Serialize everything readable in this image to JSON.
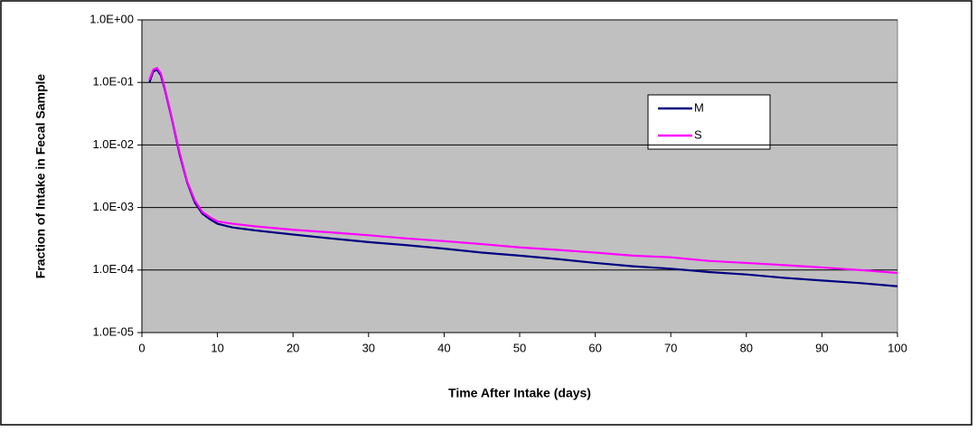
{
  "chart_data": {
    "type": "line",
    "xlabel": "Time After Intake (days)",
    "ylabel": "Fraction of Intake in Fecal Sample",
    "log_y": true,
    "grid": true,
    "x": [
      1,
      1.5,
      2,
      2.5,
      3,
      4,
      5,
      6,
      7,
      8,
      9,
      10,
      12,
      15,
      20,
      25,
      30,
      35,
      40,
      45,
      50,
      55,
      60,
      65,
      70,
      75,
      80,
      85,
      90,
      95,
      100
    ],
    "series": [
      {
        "name": "M",
        "color": "#000080",
        "values": [
          0.1,
          0.15,
          0.16,
          0.13,
          0.08,
          0.025,
          0.007,
          0.0025,
          0.0012,
          0.0008,
          0.00065,
          0.00055,
          0.00048,
          0.00043,
          0.00037,
          0.00032,
          0.00028,
          0.00025,
          0.00022,
          0.00019,
          0.00017,
          0.00015,
          0.00013,
          0.000115,
          0.000105,
          9.3e-05,
          8.5e-05,
          7.5e-05,
          6.8e-05,
          6.2e-05,
          5.5e-05
        ]
      },
      {
        "name": "S",
        "color": "#ff00ff",
        "values": [
          0.11,
          0.16,
          0.17,
          0.14,
          0.085,
          0.026,
          0.0075,
          0.0026,
          0.0013,
          0.00085,
          0.0007,
          0.0006,
          0.00055,
          0.0005,
          0.00044,
          0.0004,
          0.00036,
          0.00032,
          0.00029,
          0.00026,
          0.00023,
          0.00021,
          0.00019,
          0.00017,
          0.00016,
          0.00014,
          0.00013,
          0.00012,
          0.00011,
          0.0001,
          9e-05
        ]
      }
    ],
    "xlim": [
      0,
      100
    ],
    "xticks": [
      0,
      10,
      20,
      30,
      40,
      50,
      60,
      70,
      80,
      90,
      100
    ],
    "ylim": [
      1e-05,
      1
    ],
    "yticks": [
      {
        "value": 1e-05,
        "label": "1.0E-05"
      },
      {
        "value": 0.0001,
        "label": "1.0E-04"
      },
      {
        "value": 0.001,
        "label": "1.0E-03"
      },
      {
        "value": 0.01,
        "label": "1.0E-02"
      },
      {
        "value": 0.1,
        "label": "1.0E-01"
      },
      {
        "value": 1,
        "label": "1.0E+00"
      }
    ]
  }
}
